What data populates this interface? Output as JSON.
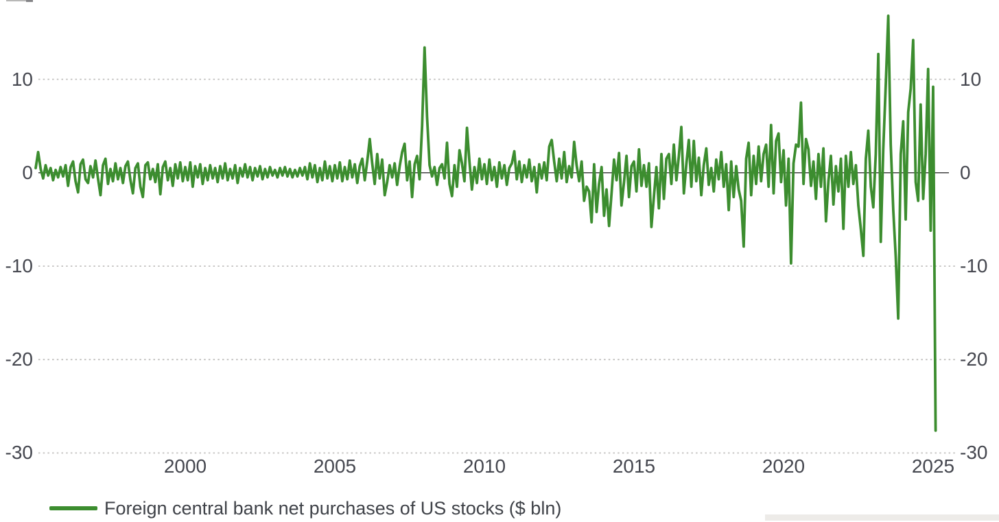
{
  "chart_data": {
    "type": "line",
    "title": "",
    "legend_label": "Foreign central bank net purchases of US stocks ($ bln)",
    "legend_position": "bottom-left",
    "grid": "horizontal-dotted",
    "y_ticks": [
      10,
      0,
      -10,
      -20,
      -30
    ],
    "y_ticks_sides": "both",
    "x_ticks": [
      2000,
      2005,
      2010,
      2015,
      2020,
      2025
    ],
    "ylim": [
      -30,
      17
    ],
    "xlim_years": [
      1995,
      2025.6
    ],
    "colors": {
      "line": "#3c8d2f",
      "grid": "#c0bfbd",
      "zero_axis": "#4d4d4d",
      "tick_text": "#45474f",
      "legend_text": "#3f4248"
    },
    "series": [
      {
        "name": "Foreign central bank net purchases of US stocks ($ bln)",
        "x_start_year": 1995,
        "frequency": "monthly",
        "values": [
          0.5,
          2.2,
          0.4,
          -0.6,
          0.8,
          -0.3,
          0.5,
          -0.8,
          0.3,
          -0.5,
          0.6,
          -0.4,
          0.8,
          -1.4,
          0.6,
          1.2,
          -0.9,
          -2.1,
          0.9,
          1.4,
          -0.7,
          -1.1,
          0.7,
          -0.5,
          1.3,
          -0.6,
          -2.4,
          0.8,
          1.5,
          -1.2,
          0.4,
          -0.9,
          1.0,
          -0.7,
          0.5,
          -1.1,
          0.7,
          1.2,
          -0.8,
          -2.2,
          0.5,
          1.0,
          -1.5,
          -2.6,
          0.8,
          1.1,
          -0.7,
          0.4,
          -1.0,
          0.9,
          -2.3,
          0.6,
          1.2,
          -0.8,
          0.5,
          -1.4,
          0.9,
          -0.6,
          1.1,
          -0.9,
          0.6,
          -0.8,
          1.1,
          -1.5,
          0.7,
          -0.5,
          0.9,
          -1.2,
          0.5,
          -0.8,
          0.8,
          -0.6,
          0.5,
          -1.0,
          0.7,
          -0.6,
          1.0,
          -0.8,
          0.4,
          -0.6,
          0.8,
          -1.1,
          0.5,
          -0.4,
          0.9,
          -0.5,
          0.6,
          -0.8,
          0.5,
          -0.4,
          0.7,
          -0.7,
          0.4,
          -0.5,
          0.6,
          -0.3,
          0.3,
          -0.5,
          0.5,
          -0.3,
          0.6,
          -0.4,
          0.4,
          -0.5,
          0.3,
          -0.4,
          0.5,
          -0.3,
          0.6,
          -0.7,
          1.0,
          -0.5,
          0.8,
          -1.0,
          0.5,
          -0.8,
          1.2,
          -0.6,
          0.7,
          -0.9,
          0.8,
          -0.6,
          1.1,
          -0.9,
          0.6,
          -0.7,
          1.3,
          -0.5,
          0.9,
          -1.1,
          0.7,
          1.5,
          -0.8,
          1.2,
          3.6,
          1.0,
          -1.2,
          2.0,
          -0.6,
          1.4,
          -2.4,
          -1.0,
          0.8,
          -0.5,
          1.0,
          -1.3,
          0.7,
          2.2,
          3.1,
          -0.8,
          1.2,
          -2.6,
          0.9,
          1.8,
          -0.7,
          5.0,
          13.4,
          6.0,
          0.8,
          -0.4,
          0.6,
          -1.3,
          0.5,
          0.9,
          -0.6,
          3.2,
          -1.2,
          -2.5,
          0.8,
          -1.5,
          2.4,
          1.0,
          -0.9,
          4.8,
          1.2,
          -1.8,
          0.6,
          -1.1,
          1.5,
          -0.7,
          0.9,
          -1.2,
          1.4,
          -0.8,
          0.6,
          -1.5,
          1.1,
          -0.6,
          0.8,
          -1.3,
          0.5,
          1.0,
          2.3,
          -0.7,
          1.2,
          -1.0,
          0.8,
          -0.5,
          1.4,
          -0.9,
          0.6,
          -2.1,
          0.9,
          -0.6,
          1.1,
          -0.8,
          2.8,
          3.5,
          1.2,
          -0.9,
          1.5,
          -0.6,
          2.2,
          -1.0,
          0.7,
          -0.5,
          3.3,
          0.8,
          -0.9,
          1.2,
          -3.0,
          -1.5,
          -2.0,
          -5.3,
          0.9,
          -4.2,
          -1.2,
          0.6,
          -4.6,
          -1.8,
          -5.7,
          -2.2,
          1.4,
          -0.8,
          2.1,
          -3.5,
          -1.0,
          1.8,
          -2.6,
          0.7,
          1.2,
          -2.0,
          2.5,
          -1.4,
          0.8,
          -1.5,
          1.0,
          -5.8,
          -2.5,
          0.6,
          -3.8,
          2.0,
          -2.8,
          1.5,
          2.0,
          -1.2,
          3.0,
          -0.8,
          1.8,
          4.9,
          -2.2,
          0.9,
          3.5,
          -1.5,
          3.4,
          -0.9,
          1.6,
          -2.4,
          0.8,
          2.6,
          -1.3,
          0.5,
          -2.0,
          1.4,
          -0.7,
          2.2,
          -1.5,
          0.9,
          -4.0,
          1.2,
          -2.6,
          0.7,
          -1.8,
          -3.0,
          -7.9,
          1.5,
          3.2,
          -2.4,
          1.8,
          -1.2,
          2.8,
          -0.9,
          2.0,
          3.0,
          -1.5,
          5.1,
          -2.2,
          3.4,
          4.2,
          -1.0,
          2.4,
          -3.5,
          1.5,
          -9.7,
          1.0,
          3.0,
          2.8,
          7.5,
          -1.2,
          3.6,
          2.5,
          -1.4,
          1.2,
          -2.8,
          2.0,
          -1.5,
          2.6,
          -5.2,
          -0.9,
          1.8,
          -3.4,
          0.7,
          -2.0,
          1.5,
          -6.0,
          1.8,
          -1.5,
          2.2,
          -1.2,
          0.8,
          -3.5,
          -6.0,
          -8.9,
          1.5,
          4.5,
          -1.5,
          -3.7,
          2.0,
          12.7,
          -7.4,
          2.5,
          9.5,
          16.8,
          3.0,
          -4.0,
          -9.0,
          -15.6,
          2.0,
          5.5,
          -5.0,
          6.5,
          9.0,
          14.2,
          -1.0,
          -3.0,
          7.3,
          -2.8,
          2.0,
          11.1,
          -6.2,
          9.2,
          -27.6
        ]
      }
    ]
  }
}
